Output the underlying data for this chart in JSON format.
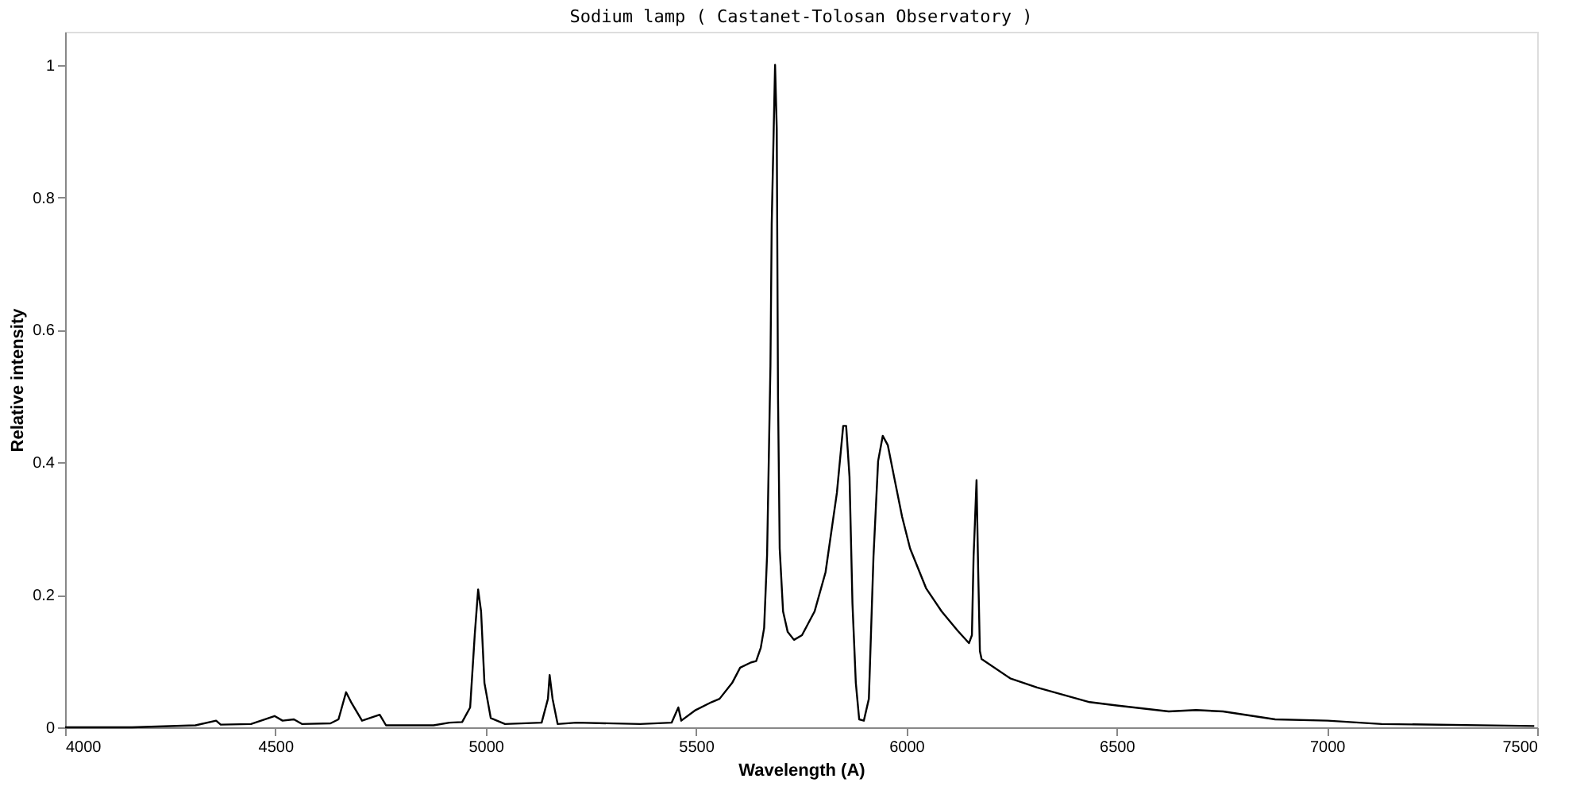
{
  "chart_data": {
    "type": "line",
    "title": "Sodium lamp ( Castanet-Tolosan Observatory )",
    "xlabel": "Wavelength (A)",
    "ylabel": "Relative intensity",
    "xlim": [
      4000,
      7500
    ],
    "xticks": [
      4000,
      4500,
      5000,
      5500,
      6000,
      6500,
      7000,
      7500
    ],
    "ylim": [
      0,
      1.05
    ],
    "yticks": [
      0,
      0.2,
      0.4,
      0.6,
      0.8,
      1
    ],
    "grid": false,
    "legend": false,
    "series": [
      {
        "color": "#000000",
        "x": [
          4000,
          4159,
          4310,
          4359,
          4370,
          4442,
          4498,
          4517,
          4544,
          4563,
          4631,
          4650,
          4668,
          4680,
          4706,
          4748,
          4763,
          4876,
          4914,
          4944,
          4963,
          4974,
          4982,
          4989,
          4997,
          5012,
          5046,
          5133,
          5148,
          5152,
          5159,
          5171,
          5216,
          5367,
          5442,
          5458,
          5465,
          5499,
          5537,
          5556,
          5586,
          5605,
          5631,
          5643,
          5654,
          5662,
          5669,
          5677,
          5680,
          5688,
          5692,
          5695,
          5699,
          5707,
          5718,
          5733,
          5752,
          5782,
          5808,
          5835,
          5850,
          5857,
          5865,
          5872,
          5880,
          5888,
          5899,
          5911,
          5922,
          5933,
          5944,
          5956,
          5971,
          5990,
          6009,
          6047,
          6084,
          6122,
          6149,
          6156,
          6160,
          6163,
          6167,
          6171,
          6175,
          6179,
          6247,
          6311,
          6436,
          6500,
          6624,
          6689,
          6753,
          6877,
          7002,
          7130,
          7493
        ],
        "values": [
          0,
          0,
          0.003,
          0.01,
          0.004,
          0.005,
          0.017,
          0.01,
          0.012,
          0.005,
          0.006,
          0.012,
          0.053,
          0.038,
          0.01,
          0.019,
          0.003,
          0.003,
          0.007,
          0.008,
          0.03,
          0.14,
          0.208,
          0.175,
          0.067,
          0.014,
          0.005,
          0.007,
          0.043,
          0.079,
          0.043,
          0.005,
          0.007,
          0.005,
          0.007,
          0.03,
          0.01,
          0.026,
          0.038,
          0.043,
          0.067,
          0.09,
          0.098,
          0.1,
          0.12,
          0.15,
          0.26,
          0.545,
          0.76,
          1.0,
          0.904,
          0.5,
          0.27,
          0.175,
          0.144,
          0.132,
          0.139,
          0.175,
          0.234,
          0.354,
          0.455,
          0.455,
          0.378,
          0.187,
          0.067,
          0.012,
          0.01,
          0.043,
          0.258,
          0.402,
          0.44,
          0.426,
          0.378,
          0.318,
          0.27,
          0.21,
          0.175,
          0.146,
          0.127,
          0.139,
          0.258,
          0.306,
          0.373,
          0.234,
          0.115,
          0.103,
          0.074,
          0.06,
          0.038,
          0.033,
          0.024,
          0.026,
          0.024,
          0.012,
          0.01,
          0.005,
          0.002
        ]
      }
    ]
  }
}
